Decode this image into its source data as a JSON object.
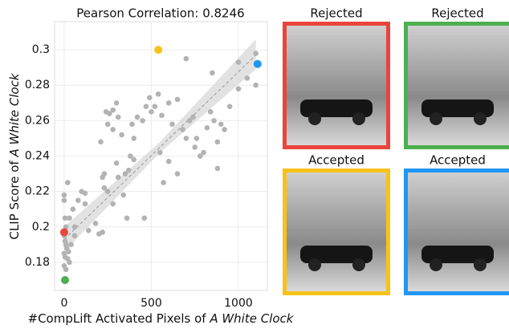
{
  "chart_data": {
    "type": "scatter",
    "title": "Pearson Correlation: 0.8246",
    "x_label": "#CompLift Activated Pixels of ",
    "x_label_italic": "A White Clock",
    "y_label": "CLIP Score of ",
    "y_label_italic": "A White Clock",
    "xlim": [
      -55,
      1166
    ],
    "ylim": [
      0.1641,
      0.3159
    ],
    "xticks": [
      0,
      500,
      1000
    ],
    "yticks": [
      0.18,
      0.2,
      0.22,
      0.24,
      0.26,
      0.28,
      0.3
    ],
    "grid": true,
    "fit": {
      "x": [
        0,
        550,
        1100
      ],
      "y": [
        0.193,
        0.245,
        0.297
      ],
      "lower": [
        0.186,
        0.242,
        0.289
      ],
      "upper": [
        0.2,
        0.248,
        0.306
      ]
    },
    "series": [
      {
        "color": "#b3b3b3",
        "x": [
          0,
          0,
          5,
          10,
          0,
          5,
          10,
          15,
          0,
          5,
          20,
          30,
          0,
          10,
          25,
          40,
          30,
          50,
          60,
          80,
          100,
          120,
          20,
          60,
          140,
          180,
          200,
          220,
          120,
          230,
          250,
          220,
          230,
          280,
          310,
          300,
          340,
          360,
          350,
          370,
          400,
          460,
          400,
          380,
          210,
          250,
          240,
          260,
          280,
          300,
          310,
          280,
          330,
          390,
          420,
          450,
          470,
          490,
          500,
          520,
          540,
          560,
          600,
          620,
          650,
          680,
          700,
          720,
          740,
          760,
          780,
          800,
          820,
          840,
          860,
          880,
          900,
          920,
          950,
          1000,
          700,
          850,
          1000,
          1050,
          1100,
          1100,
          650,
          600,
          550,
          570,
          880,
          750
        ],
        "y": [
          0.218,
          0.215,
          0.205,
          0.2,
          0.195,
          0.192,
          0.19,
          0.188,
          0.185,
          0.183,
          0.182,
          0.18,
          0.178,
          0.176,
          0.186,
          0.19,
          0.205,
          0.21,
          0.2,
          0.215,
          0.22,
          0.213,
          0.225,
          0.195,
          0.198,
          0.202,
          0.196,
          0.197,
          0.219,
          0.222,
          0.22,
          0.228,
          0.23,
          0.213,
          0.228,
          0.236,
          0.218,
          0.205,
          0.23,
          0.232,
          0.238,
          0.205,
          0.25,
          0.24,
          0.248,
          0.258,
          0.265,
          0.264,
          0.266,
          0.27,
          0.262,
          0.255,
          0.252,
          0.258,
          0.262,
          0.26,
          0.268,
          0.273,
          0.265,
          0.268,
          0.275,
          0.263,
          0.27,
          0.258,
          0.272,
          0.255,
          0.25,
          0.26,
          0.262,
          0.25,
          0.24,
          0.242,
          0.256,
          0.265,
          0.26,
          0.248,
          0.258,
          0.255,
          0.268,
          0.278,
          0.295,
          0.287,
          0.293,
          0.284,
          0.298,
          0.28,
          0.23,
          0.237,
          0.242,
          0.225,
          0.233,
          0.245
        ]
      },
      {
        "color": "#f7c21a",
        "x": [
          540
        ],
        "y": [
          0.3
        ]
      },
      {
        "color": "#2196f3",
        "x": [
          1110
        ],
        "y": [
          0.292
        ]
      },
      {
        "color": "#e8453c",
        "x": [
          0
        ],
        "y": [
          0.197
        ]
      },
      {
        "color": "#4caf50",
        "x": [
          5
        ],
        "y": [
          0.17
        ]
      }
    ]
  },
  "images": [
    {
      "label": "Rejected",
      "border": "#e8453c"
    },
    {
      "label": "Rejected",
      "border": "#4caf50"
    },
    {
      "label": "Accepted",
      "border": "#f7c21a"
    },
    {
      "label": "Accepted",
      "border": "#2196f3"
    }
  ]
}
